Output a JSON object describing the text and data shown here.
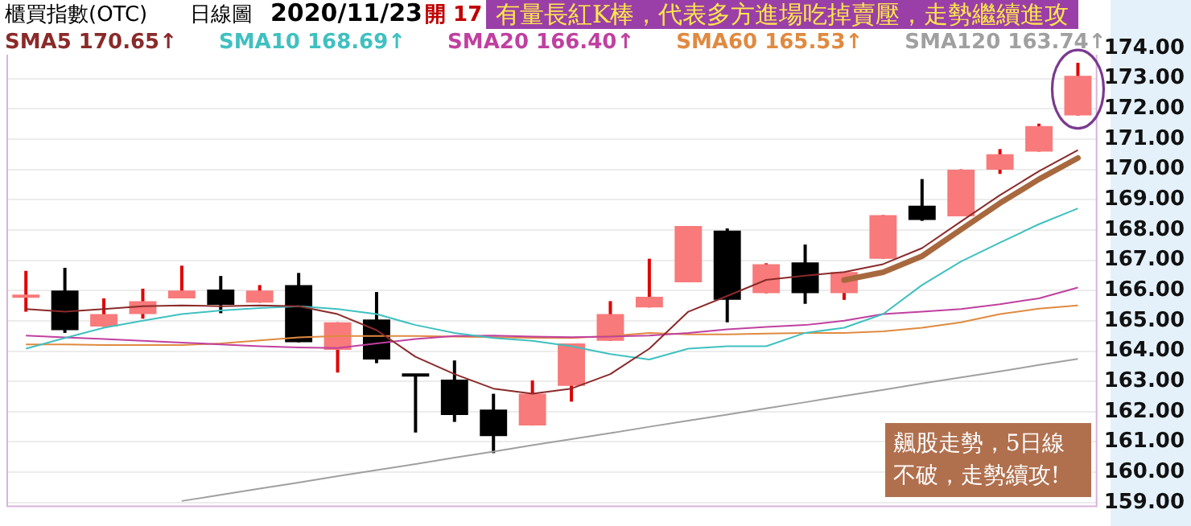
{
  "chart_data": {
    "type": "candlestick",
    "title": "櫃買指數(OTC)",
    "annotations": [
      "日線圖",
      "2020/11/23",
      "開 17",
      "有量長紅K棒，代表多方進場吃掉賣壓，走勢繼續進攻",
      "飆股走勢，5日線不破，走勢續攻!"
    ],
    "categories": [
      null,
      null,
      null,
      null,
      null,
      null,
      null,
      null,
      null,
      null,
      null,
      null,
      null,
      null,
      null,
      null,
      null,
      null,
      null,
      null,
      null,
      null,
      null,
      null,
      null,
      null,
      null,
      null
    ],
    "ohlc": [
      [
        165.8,
        166.65,
        165.3,
        165.83
      ],
      [
        166.0,
        166.75,
        164.6,
        164.69
      ],
      [
        164.81,
        165.74,
        164.8,
        165.22
      ],
      [
        165.22,
        166.06,
        165.07,
        165.65
      ],
      [
        165.74,
        166.82,
        165.74,
        166.0
      ],
      [
        166.03,
        166.48,
        165.25,
        165.53
      ],
      [
        165.6,
        166.18,
        165.6,
        166.0
      ],
      [
        166.18,
        166.58,
        164.29,
        164.29
      ],
      [
        164.04,
        164.95,
        163.29,
        164.95
      ],
      [
        165.04,
        165.95,
        163.6,
        163.72
      ],
      [
        163.22,
        163.22,
        161.31,
        163.2
      ],
      [
        163.06,
        163.69,
        161.66,
        161.89
      ],
      [
        162.07,
        162.59,
        160.63,
        161.19
      ],
      [
        161.54,
        163.03,
        161.54,
        162.59
      ],
      [
        162.85,
        164.25,
        162.33,
        164.25
      ],
      [
        164.34,
        165.65,
        164.34,
        165.22
      ],
      [
        165.44,
        167.05,
        165.44,
        165.79
      ],
      [
        166.27,
        168.13,
        166.27,
        168.13
      ],
      [
        167.98,
        168.05,
        164.95,
        165.69
      ],
      [
        165.91,
        166.9,
        165.91,
        166.87
      ],
      [
        166.93,
        167.52,
        165.56,
        165.91
      ],
      [
        165.91,
        166.61,
        165.69,
        166.61
      ],
      [
        167.05,
        168.49,
        167.05,
        168.49
      ],
      [
        168.8,
        169.68,
        168.3,
        168.33
      ],
      [
        168.45,
        170.0,
        168.45,
        169.99
      ],
      [
        169.99,
        170.67,
        169.85,
        170.5
      ],
      [
        170.59,
        171.51,
        170.59,
        171.43
      ],
      [
        171.78,
        173.52,
        171.78,
        173.09
      ]
    ],
    "series": [
      {
        "type": "line",
        "name": "SMA5 170.65↑",
        "color": "#8b2a2a",
        "values": [
          165.39,
          165.3,
          165.39,
          165.48,
          165.51,
          165.48,
          165.51,
          165.48,
          165.22,
          164.69,
          163.81,
          163.24,
          162.76,
          162.59,
          162.76,
          163.24,
          164.08,
          165.3,
          165.82,
          166.35,
          166.49,
          166.61,
          166.87,
          167.4,
          168.28,
          169.15,
          169.94,
          170.64
        ]
      },
      {
        "type": "line",
        "name": "SMA10 168.69↑",
        "color": "#40c0c0",
        "values": [
          164.08,
          164.43,
          164.77,
          165.0,
          165.22,
          165.34,
          165.42,
          165.48,
          165.39,
          165.22,
          164.86,
          164.6,
          164.43,
          164.34,
          164.16,
          163.9,
          163.72,
          164.08,
          164.16,
          164.16,
          164.6,
          164.77,
          165.22,
          166.18,
          166.96,
          167.58,
          168.19,
          168.71
        ]
      },
      {
        "type": "line",
        "name": "SMA20 166.40↑",
        "color": "#c040a0",
        "values": [
          164.51,
          164.45,
          164.4,
          164.34,
          164.28,
          164.22,
          164.16,
          164.12,
          164.1,
          164.25,
          164.4,
          164.5,
          164.51,
          164.48,
          164.46,
          164.48,
          164.51,
          164.6,
          164.72,
          164.8,
          164.86,
          165.0,
          165.22,
          165.3,
          165.39,
          165.55,
          165.74,
          166.1
        ]
      },
      {
        "type": "line",
        "name": "SMA60 165.53↑",
        "color": "#e08a40",
        "values": [
          164.22,
          164.22,
          164.2,
          164.2,
          164.2,
          164.25,
          164.35,
          164.45,
          164.5,
          164.5,
          164.5,
          164.48,
          164.46,
          164.44,
          164.43,
          164.5,
          164.6,
          164.55,
          164.55,
          164.58,
          164.6,
          164.6,
          164.65,
          164.77,
          164.95,
          165.22,
          165.4,
          165.51
        ]
      },
      {
        "type": "line",
        "name": "SMA120 163.74↑",
        "color": "#a0a0a0",
        "values": [
          null,
          null,
          null,
          null,
          159.05,
          159.25,
          159.46,
          159.66,
          159.87,
          160.07,
          160.27,
          160.48,
          160.68,
          160.89,
          161.09,
          161.29,
          161.5,
          161.7,
          161.9,
          162.11,
          162.31,
          162.52,
          162.72,
          162.93,
          163.13,
          163.33,
          163.54,
          163.74
        ]
      }
    ],
    "ylim": [
      158.85,
      174
    ],
    "yticks": [
      {
        "value": 159,
        "label": "159.00"
      },
      {
        "value": 160,
        "label": "160.00"
      },
      {
        "value": 161,
        "label": "161.00"
      },
      {
        "value": 162,
        "label": "162.00"
      },
      {
        "value": 163,
        "label": "163.00"
      },
      {
        "value": 164,
        "label": "164.00"
      },
      {
        "value": 165,
        "label": "165.00"
      },
      {
        "value": 166,
        "label": "166.00"
      },
      {
        "value": 167,
        "label": "167.00"
      },
      {
        "value": 168,
        "label": "168.00"
      },
      {
        "value": 169,
        "label": "169.00"
      },
      {
        "value": 170,
        "label": "170.00"
      },
      {
        "value": 171,
        "label": "171.00"
      },
      {
        "value": 172,
        "label": "172.00"
      },
      {
        "value": 173,
        "label": "173.00"
      },
      {
        "value": 174,
        "label": "174.00"
      }
    ],
    "grid": "y",
    "legend": "top left",
    "tick_labels": "y"
  }
}
